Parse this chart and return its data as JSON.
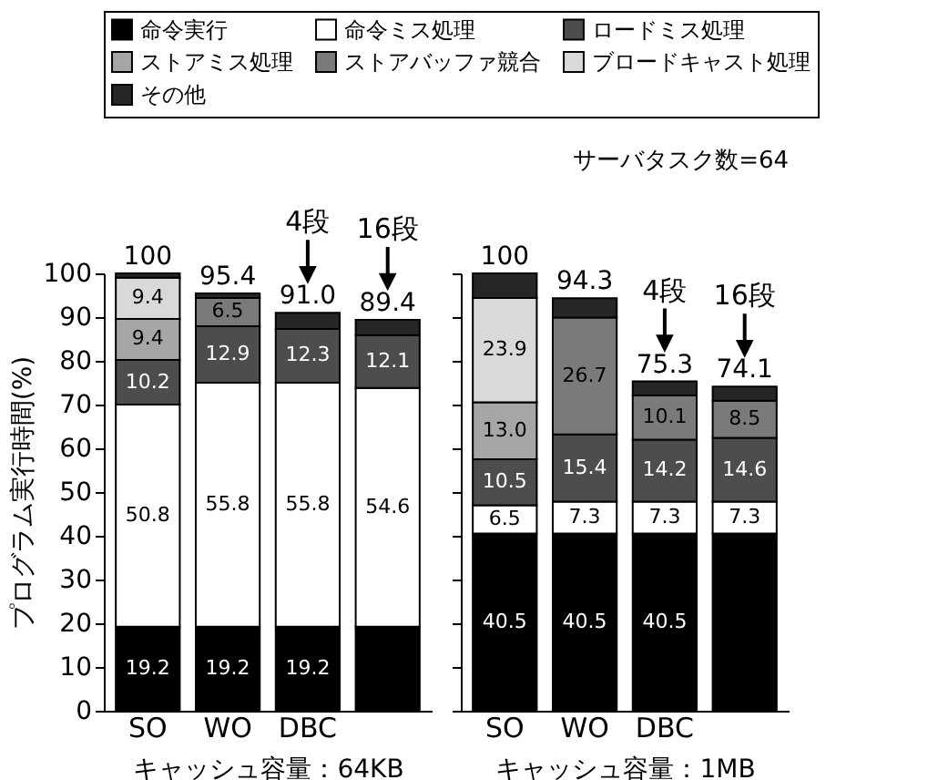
{
  "chart_data": [
    {
      "type": "bar",
      "stacked": true,
      "categories": [
        "SO",
        "WO",
        "DBC",
        null
      ],
      "xlabel": "キャッシュ容量：64KB",
      "ylabel": "プログラム実行時間(%)",
      "ylim": [
        0,
        100
      ],
      "yticks": [
        0,
        10,
        20,
        30,
        40,
        50,
        60,
        70,
        80,
        90,
        100
      ],
      "legend": "top",
      "grid": false,
      "series": [
        {
          "name": "命令実行",
          "color": "#000000",
          "values": [
            19.2,
            19.2,
            19.2,
            19.2
          ],
          "value_labels": [
            "19.2",
            "19.2",
            "19.2",
            null
          ]
        },
        {
          "name": "命令ミス処理",
          "color": "#ffffff",
          "values": [
            50.8,
            55.8,
            55.8,
            54.6
          ],
          "value_labels": [
            "50.8",
            "55.8",
            "55.8",
            "54.6"
          ]
        },
        {
          "name": "ロードミス処理",
          "color": "#4d4d4d",
          "values": [
            10.2,
            12.9,
            12.3,
            12.1
          ],
          "value_labels": [
            "10.2",
            "12.9",
            "12.3",
            "12.1"
          ]
        },
        {
          "name": "ストアミス処理",
          "color": "#a6a6a6",
          "values": [
            9.4,
            null,
            null,
            null
          ],
          "value_labels": [
            "9.4",
            null,
            null,
            null
          ]
        },
        {
          "name": "ストアバッファ競合",
          "color": "#7a7a7a",
          "values": [
            null,
            6.5,
            null,
            null
          ],
          "value_labels": [
            null,
            "6.5",
            null,
            null
          ]
        },
        {
          "name": "ブロードキャスト処理",
          "color": "#d9d9d9",
          "values": [
            9.4,
            null,
            null,
            null
          ],
          "value_labels": [
            "9.4",
            null,
            null,
            null
          ]
        },
        {
          "name": "その他",
          "color": "#262626",
          "values": [
            1.0,
            1.0,
            3.7,
            3.5
          ],
          "value_labels": [
            null,
            null,
            null,
            null
          ]
        }
      ],
      "totals": [
        "100",
        "95.4",
        "91.0",
        "89.4"
      ],
      "annotations": [
        "4段",
        "16段"
      ]
    },
    {
      "type": "bar",
      "stacked": true,
      "categories": [
        "SO",
        "WO",
        "DBC",
        null
      ],
      "xlabel": "キャッシュ容量：1MB",
      "ylim": [
        0,
        100
      ],
      "yticks": [
        0,
        10,
        20,
        30,
        40,
        50,
        60,
        70,
        80,
        90,
        100
      ],
      "tick_labels": "x",
      "grid": false,
      "series": [
        {
          "name": "命令実行",
          "color": "#000000",
          "values": [
            40.5,
            40.5,
            40.5,
            40.5
          ],
          "value_labels": [
            "40.5",
            "40.5",
            "40.5",
            null
          ]
        },
        {
          "name": "命令ミス処理",
          "color": "#ffffff",
          "values": [
            6.5,
            7.3,
            7.3,
            7.3
          ],
          "value_labels": [
            "6.5",
            "7.3",
            "7.3",
            "7.3"
          ]
        },
        {
          "name": "ロードミス処理",
          "color": "#4d4d4d",
          "values": [
            10.5,
            15.4,
            14.2,
            14.6
          ],
          "value_labels": [
            "10.5",
            "15.4",
            "14.2",
            "14.6"
          ]
        },
        {
          "name": "ストアミス処理",
          "color": "#a6a6a6",
          "values": [
            13.0,
            null,
            null,
            null
          ],
          "value_labels": [
            "13.0",
            null,
            null,
            null
          ]
        },
        {
          "name": "ストアバッファ競合",
          "color": "#7a7a7a",
          "values": [
            null,
            26.7,
            10.1,
            8.5
          ],
          "value_labels": [
            null,
            "26.7",
            "10.1",
            "8.5"
          ]
        },
        {
          "name": "ブロードキャスト処理",
          "color": "#d9d9d9",
          "values": [
            23.9,
            null,
            null,
            null
          ],
          "value_labels": [
            "23.9",
            null,
            null,
            null
          ]
        },
        {
          "name": "その他",
          "color": "#262626",
          "values": [
            5.6,
            4.4,
            3.2,
            3.2
          ],
          "value_labels": [
            null,
            null,
            null,
            null
          ]
        }
      ],
      "totals": [
        "100",
        "94.3",
        "75.3",
        "74.1"
      ],
      "annotations": [
        "サーバタスク数=64",
        "4段",
        "16段"
      ]
    }
  ]
}
